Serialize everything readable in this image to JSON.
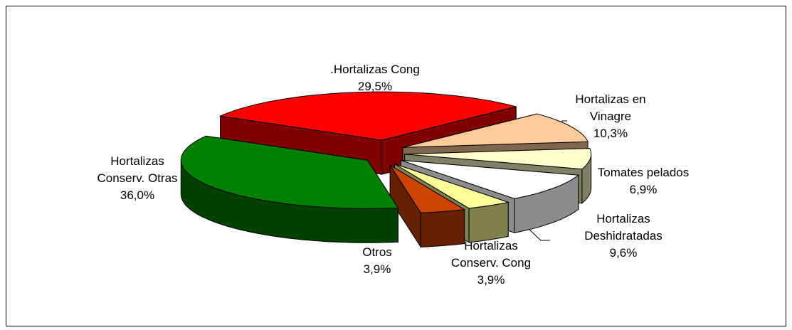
{
  "chart_data": {
    "type": "pie3d",
    "categories": [
      ".Hortalizas Cong",
      "Hortalizas en\nVinagre",
      "Tomates pelados",
      "Hortalizas\nDeshidratadas",
      "Hortalizas\nConserv. Cong",
      "Otros",
      "Hortalizas\nConserv. Otras"
    ],
    "values": [
      29.5,
      10.3,
      6.9,
      9.6,
      3.9,
      3.9,
      36.0
    ],
    "value_labels": [
      "29,5%",
      "10,3%",
      "6,9%",
      "9,6%",
      "3,9%",
      "3,9%",
      "36,0%"
    ],
    "colors": [
      "#ff0000",
      "#ffcc99",
      "#ffffcc",
      "#ffffff",
      "#ffff99",
      "#cc4400",
      "#008000"
    ]
  }
}
